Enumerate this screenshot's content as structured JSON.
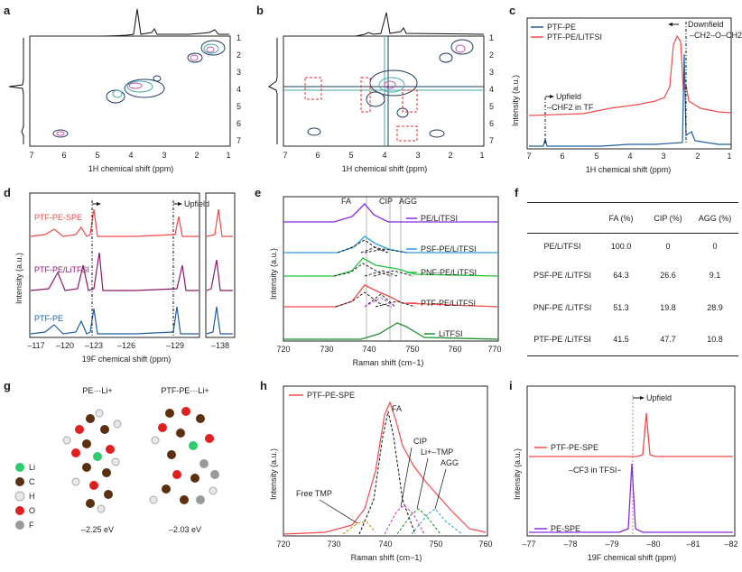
{
  "panels": {
    "a": {
      "label": "a",
      "xlabel": "1H chemical shift (ppm)",
      "ylabel": "1H chemical shift (ppm)",
      "xticks": [
        "7",
        "6",
        "5",
        "4",
        "3",
        "2",
        "1"
      ],
      "yticks": [
        "1",
        "2",
        "3",
        "4",
        "5",
        "6",
        "7"
      ]
    },
    "b": {
      "label": "b",
      "xlabel": "1H chemical shift (ppm)",
      "ylabel": "1H chemical shift (ppm)",
      "xticks": [
        "7",
        "6",
        "5",
        "4",
        "3",
        "2",
        "1"
      ],
      "yticks": [
        "1",
        "2",
        "3",
        "4",
        "5",
        "6",
        "7"
      ]
    },
    "c": {
      "label": "c",
      "xlabel": "1H chemical shift (ppm)",
      "ylabel": "Intensity (a.u.)",
      "xticks": [
        "7",
        "6",
        "5",
        "4",
        "3",
        "2",
        "1"
      ],
      "legend": [
        "PTF-PE",
        "PTF-PE/LiTFSI"
      ],
      "colors": {
        "blue": "#1f5fa0",
        "red": "#f24b4b"
      },
      "ann_downfield": "Downfield",
      "ann_ch2": "–CH2–O–CH2–",
      "ann_upfield": "Upfield",
      "ann_chf2": "–CHF2 in TF"
    },
    "d": {
      "label": "d",
      "xlabel": "19F chemical shift (ppm)",
      "ylabel": "Intensity (a.u.)",
      "xticks": [
        "–117",
        "–120",
        "–123",
        "–126",
        "–129",
        "–138"
      ],
      "series": [
        "PTF-PE-SPE",
        "PTF-PE/LiTFSI",
        "PTF-PE"
      ],
      "colors": [
        "#f24b4b",
        "#8b1a6b",
        "#1f5fa0"
      ],
      "ann_upfield": "Upfield"
    },
    "e": {
      "label": "e",
      "xlabel": "Raman shift (cm−1)",
      "ylabel": "Intensity (a.u.)",
      "xticks": [
        "720",
        "730",
        "740",
        "750",
        "760",
        "770"
      ],
      "tags": [
        "FA",
        "CIP",
        "AGG"
      ],
      "series": [
        "PE/LiTFSI",
        "PSF-PE/LiTFSI",
        "PNF-PE/LiTFSI",
        "PTF-PE/LiTFSI",
        "LiTFSI"
      ],
      "colors": [
        "#8a2be2",
        "#2aa0e0",
        "#22c43a",
        "#f24b4b",
        "#1e8f2e"
      ]
    },
    "f": {
      "label": "f",
      "headers": [
        "",
        "FA (%)",
        "CIP (%)",
        "AGG (%)"
      ],
      "rows": [
        [
          "PE/LiTFSI",
          "100.0",
          "0",
          "0"
        ],
        [
          "PSF-PE /LiTFSI",
          "64.3",
          "26.6",
          "9.1"
        ],
        [
          "PNF-PE /LiTFSI",
          "51.3",
          "19.8",
          "28.9"
        ],
        [
          "PTF-PE /LiTFSI",
          "41.5",
          "47.7",
          "10.8"
        ]
      ]
    },
    "g": {
      "label": "g",
      "title_left": "PE···Li+",
      "title_right": "PTF-PE···Li+",
      "legend": [
        {
          "el": "Li",
          "color": "#2ecc71"
        },
        {
          "el": "C",
          "color": "#5a3010"
        },
        {
          "el": "H",
          "color": "#e8e8e8"
        },
        {
          "el": "O",
          "color": "#e02020"
        },
        {
          "el": "F",
          "color": "#9a9a9a"
        }
      ],
      "energy_left": "–2.25 eV",
      "energy_right": "–2.03 eV"
    },
    "h": {
      "label": "h",
      "xlabel": "Raman shift (cm−1)",
      "ylabel": "Intensity (a.u.)",
      "xticks": [
        "720",
        "730",
        "740",
        "750",
        "760"
      ],
      "legend": "PTF-PE-SPE",
      "tags": [
        "FA",
        "CIP",
        "Li+–TMP",
        "AGG",
        "Free TMP"
      ]
    },
    "i": {
      "label": "i",
      "xlabel": "19F chemical shift (ppm)",
      "ylabel": "Intensity (a.u.)",
      "xticks": [
        "–77",
        "–78",
        "–79",
        "–80",
        "–81",
        "–82"
      ],
      "series": [
        "PTF-PE-SPE",
        "PE-SPE"
      ],
      "colors": [
        "#f24b4b",
        "#8a2be2"
      ],
      "ann_upfield": "Upfield",
      "ann_cf3": "–CF3 in TFSI−"
    }
  }
}
